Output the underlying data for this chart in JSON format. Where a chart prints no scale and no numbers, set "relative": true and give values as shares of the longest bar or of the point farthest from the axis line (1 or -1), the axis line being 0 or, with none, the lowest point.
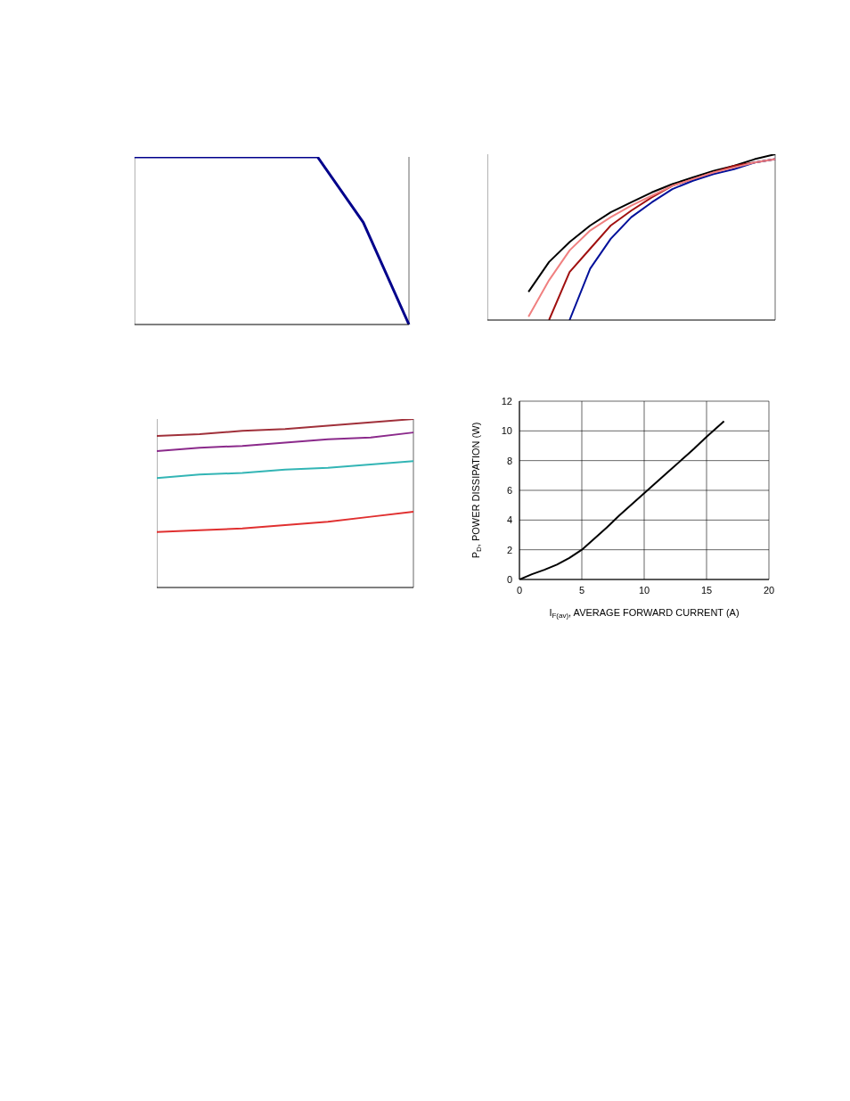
{
  "chart_data": [
    {
      "type": "line",
      "relative": true,
      "tick_labels": false,
      "grid": "x",
      "categories": [
        null,
        null,
        null,
        null,
        null,
        null,
        null
      ],
      "series": [
        {
          "color": "#00008b",
          "values": [
            1,
            1,
            1,
            1,
            1,
            0.61,
            0
          ]
        }
      ]
    },
    {
      "type": "line",
      "relative": true,
      "tick_labels": false,
      "grid": "x",
      "categories": [
        null,
        null,
        null,
        null,
        null,
        null,
        null,
        null,
        null,
        null,
        null,
        null,
        null,
        null,
        null
      ],
      "series": [
        {
          "color": "#000000",
          "values": [
            null,
            null,
            0.17,
            0.35,
            0.47,
            0.57,
            0.65,
            0.71,
            0.77,
            0.82,
            0.86,
            0.9,
            0.93,
            0.97,
            1
          ]
        },
        {
          "color": "#a01010",
          "values": [
            null,
            null,
            null,
            0,
            0.29,
            0.43,
            0.57,
            0.66,
            0.74,
            0.81,
            0.85,
            0.89,
            0.93,
            0.95,
            0.97
          ]
        },
        {
          "color": "#00109a",
          "values": [
            null,
            null,
            null,
            null,
            0,
            0.31,
            0.49,
            0.62,
            0.71,
            0.79,
            0.84,
            0.88,
            0.91,
            0.95,
            0.97
          ]
        },
        {
          "color": "#f08080",
          "values": [
            null,
            null,
            0.02,
            0.24,
            0.42,
            0.54,
            0.62,
            0.69,
            0.75,
            0.81,
            0.85,
            0.89,
            0.92,
            0.95,
            0.97
          ]
        }
      ]
    },
    {
      "type": "line",
      "relative": true,
      "tick_labels": false,
      "grid": "x",
      "categories": [
        null,
        null,
        null,
        null,
        null,
        null,
        null
      ],
      "series": [
        {
          "color": "#a0303a",
          "values": [
            0.9,
            0.91,
            0.93,
            0.94,
            0.96,
            0.98,
            1
          ]
        },
        {
          "color": "#8b2a8b",
          "values": [
            0.81,
            0.83,
            0.84,
            0.86,
            0.88,
            0.89,
            0.92
          ]
        },
        {
          "color": "#33b5b5",
          "values": [
            0.65,
            0.67,
            0.68,
            0.7,
            0.71,
            0.73,
            0.75
          ]
        },
        {
          "color": "#e03030",
          "values": [
            0.33,
            0.34,
            0.35,
            0.37,
            0.39,
            0.42,
            0.45
          ]
        }
      ]
    },
    {
      "type": "line",
      "grid": true,
      "xlabel": "I$_{F(av)}$, AVERAGE FORWARD CURRENT (A)",
      "ylabel": "P$_{D}$, POWER DISSIPATION (W)",
      "xlim": [
        0,
        20
      ],
      "xticks": [
        0,
        5,
        10,
        15,
        20
      ],
      "ylim": [
        0,
        12
      ],
      "yticks": [
        0,
        2,
        4,
        6,
        8,
        10,
        12
      ],
      "x": [
        0,
        1,
        2,
        3,
        4,
        5,
        6,
        7,
        8,
        9,
        10,
        11,
        12,
        13,
        14,
        15,
        16.4
      ],
      "series": [
        {
          "color": "#000000",
          "values": [
            0,
            0.35,
            0.65,
            1.0,
            1.45,
            2.0,
            2.75,
            3.5,
            4.3,
            5.05,
            5.8,
            6.55,
            7.3,
            8.05,
            8.8,
            9.6,
            10.65
          ]
        }
      ]
    }
  ]
}
